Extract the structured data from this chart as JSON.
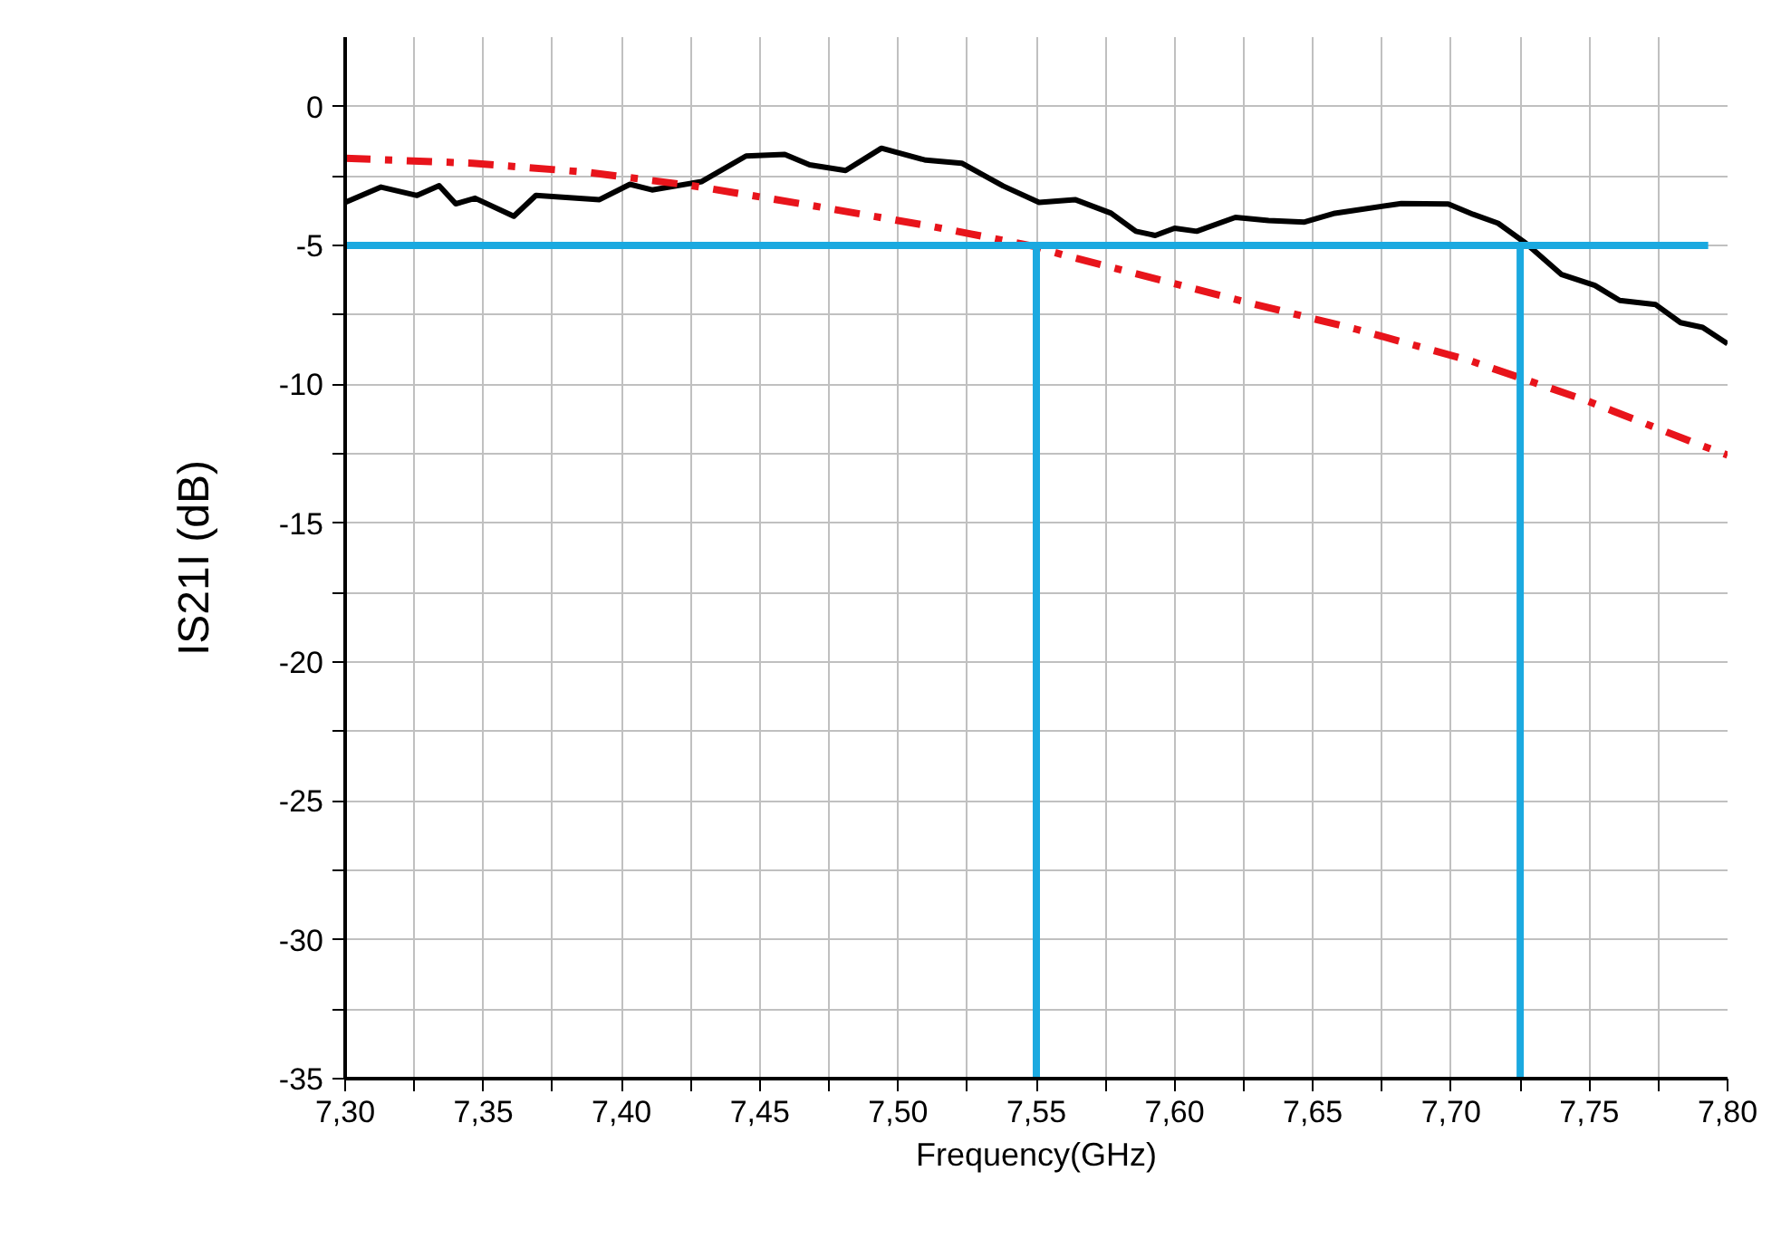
{
  "chart_data": {
    "type": "line",
    "xlabel": "Frequency(GHz)",
    "ylabel": "IS21I (dB)",
    "xlim": [
      7.3,
      7.8
    ],
    "ylim": [
      -35,
      2.5
    ],
    "xticks": [
      {
        "value": 7.3,
        "label": "7,30"
      },
      {
        "value": 7.325,
        "label": null
      },
      {
        "value": 7.35,
        "label": "7,35"
      },
      {
        "value": 7.375,
        "label": null
      },
      {
        "value": 7.4,
        "label": "7,40"
      },
      {
        "value": 7.425,
        "label": null
      },
      {
        "value": 7.45,
        "label": "7,45"
      },
      {
        "value": 7.475,
        "label": null
      },
      {
        "value": 7.5,
        "label": "7,50"
      },
      {
        "value": 7.525,
        "label": null
      },
      {
        "value": 7.55,
        "label": "7,55"
      },
      {
        "value": 7.575,
        "label": null
      },
      {
        "value": 7.6,
        "label": "7,60"
      },
      {
        "value": 7.625,
        "label": null
      },
      {
        "value": 7.65,
        "label": "7,65"
      },
      {
        "value": 7.675,
        "label": null
      },
      {
        "value": 7.7,
        "label": "7,70"
      },
      {
        "value": 7.725,
        "label": null
      },
      {
        "value": 7.75,
        "label": "7,75"
      },
      {
        "value": 7.775,
        "label": null
      },
      {
        "value": 7.8,
        "label": "7,80"
      }
    ],
    "yticks": [
      -35,
      {
        "value": -32.5,
        "label": null
      },
      -30,
      {
        "value": -27.5,
        "label": null
      },
      -25,
      {
        "value": -22.5,
        "label": null
      },
      -20,
      {
        "value": -17.5,
        "label": null
      },
      -15,
      {
        "value": -12.5,
        "label": null
      },
      -10,
      {
        "value": -7.5,
        "label": null
      },
      -5,
      {
        "value": -2.5,
        "label": null
      },
      0
    ],
    "grid": true,
    "marker": "none",
    "series": [
      {
        "color": "#000000",
        "line_style": "solid",
        "x": [
          7.3,
          7.313,
          7.326,
          7.334,
          7.34,
          7.347,
          7.361,
          7.369,
          7.392,
          7.403,
          7.411,
          7.429,
          7.445,
          7.459,
          7.468,
          7.481,
          7.494,
          7.51,
          7.523,
          7.538,
          7.551,
          7.564,
          7.577,
          7.586,
          7.593,
          7.6,
          7.608,
          7.622,
          7.634,
          7.647,
          7.658,
          7.682,
          7.699,
          7.708,
          7.717,
          7.727,
          7.74,
          7.752,
          7.761,
          7.774,
          7.783,
          7.791,
          7.8
        ],
        "values": [
          -3.45,
          -2.9,
          -3.2,
          -2.85,
          -3.5,
          -3.3,
          -3.95,
          -3.2,
          -3.35,
          -2.8,
          -3.0,
          -2.7,
          -1.78,
          -1.72,
          -2.1,
          -2.3,
          -1.5,
          -1.93,
          -2.04,
          -2.86,
          -3.45,
          -3.35,
          -3.84,
          -4.49,
          -4.64,
          -4.38,
          -4.49,
          -3.99,
          -4.1,
          -4.16,
          -3.84,
          -3.49,
          -3.51,
          -3.88,
          -4.2,
          -4.92,
          -6.05,
          -6.44,
          -6.98,
          -7.13,
          -7.78,
          -7.95,
          -8.54
        ]
      },
      {
        "color": "#e8141b",
        "line_style": "dashed",
        "x": [
          7.3,
          7.346,
          7.387,
          7.425,
          7.468,
          7.512,
          7.549,
          7.56,
          7.625,
          7.665,
          7.706,
          7.748,
          7.787,
          7.8
        ],
        "values": [
          -1.86,
          -2.04,
          -2.36,
          -2.84,
          -3.55,
          -4.31,
          -5.03,
          -5.35,
          -7.02,
          -8.0,
          -9.12,
          -10.55,
          -12.07,
          -12.55
        ]
      },
      {
        "color": "#1ba9e0",
        "line_style": "solid",
        "x": [
          7.3,
          7.793
        ],
        "values": [
          -5,
          -5
        ]
      },
      {
        "color": "#1ba9e0",
        "line_style": "solid",
        "x": [
          7.55,
          7.55
        ],
        "values": [
          -35,
          -5
        ]
      },
      {
        "color": "#1ba9e0",
        "line_style": "solid",
        "x": [
          7.725,
          7.725
        ],
        "values": [
          -35,
          -5
        ]
      }
    ]
  }
}
